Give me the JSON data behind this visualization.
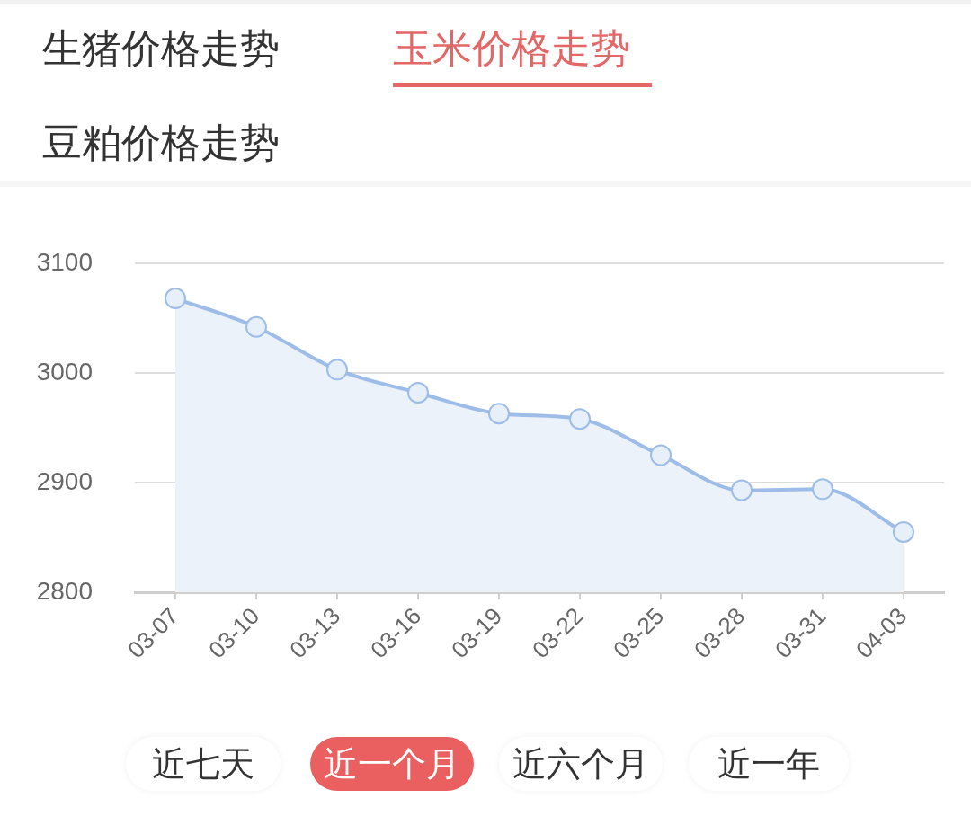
{
  "chart_data": {
    "type": "area",
    "title": "玉米价格走势",
    "subtitle": "近一个月",
    "annotations": [
      "生猪价格走势",
      "豆粕价格走势",
      "近七天",
      "近六个月",
      "近一年"
    ],
    "categories": [
      "03-07",
      "03-10",
      "03-13",
      "03-16",
      "03-19",
      "03-22",
      "03-25",
      "03-28",
      "03-31",
      "04-03"
    ],
    "values": [
      3068,
      3042,
      3003,
      2982,
      2963,
      2958,
      2925,
      2893,
      2894,
      2855
    ],
    "color": "#9dbde8",
    "ylim": [
      2800,
      3100
    ],
    "yticks": [
      2800,
      2900,
      3000,
      3100
    ],
    "grid": "y",
    "marker": "circle",
    "line_style": "solid"
  }
}
